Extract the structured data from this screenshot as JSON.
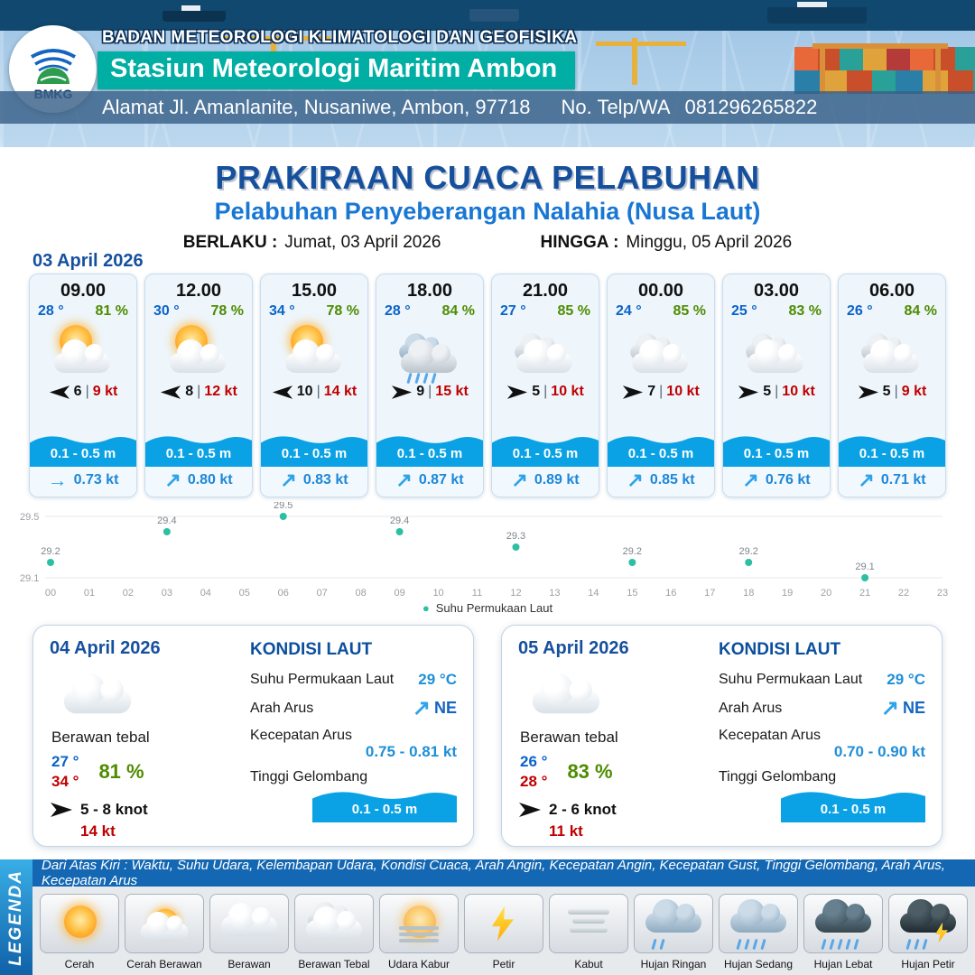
{
  "header": {
    "org": "BADAN METEOROLOGI KLIMATOLOGI DAN GEOFISIKA",
    "station": "Stasiun Meteorologi Maritim Ambon",
    "address": "Alamat Jl. Amanlanite, Nusaniwe, Ambon, 97718",
    "phone_label": "No. Telp/WA",
    "phone": "081296265822",
    "logo": "BMKG"
  },
  "title": {
    "main": "PRAKIRAAN CUACA PELABUHAN",
    "sub": "Pelabuhan Penyeberangan Nalahia (Nusa Laut)",
    "berlaku_label": "BERLAKU :",
    "berlaku": "Jumat, 03 April 2026",
    "hingga_label": "HINGGA :",
    "hingga": "Minggu, 05 April 2026"
  },
  "forecast_date": "03 April 2026",
  "ui": {
    "sep": "|",
    "arrow_ne": "↗",
    "arrow_e": "→",
    "legend_dot": "●"
  },
  "hourly": [
    {
      "time": "09.00",
      "temp": "28 °",
      "rh": "81 %",
      "weather": "Cerah Berawan",
      "wind": "6",
      "gust": "9 kt",
      "wave": "0.1 - 0.5 m",
      "current": "0.73 kt",
      "current_arrow": "→"
    },
    {
      "time": "12.00",
      "temp": "30 °",
      "rh": "78 %",
      "weather": "Cerah Berawan",
      "wind": "8",
      "gust": "12 kt",
      "wave": "0.1 - 0.5 m",
      "current": "0.80 kt",
      "current_arrow": "↗"
    },
    {
      "time": "15.00",
      "temp": "34 °",
      "rh": "78 %",
      "weather": "Cerah Berawan",
      "wind": "10",
      "gust": "14 kt",
      "wave": "0.1 - 0.5 m",
      "current": "0.83 kt",
      "current_arrow": "↗"
    },
    {
      "time": "18.00",
      "temp": "28 °",
      "rh": "84 %",
      "weather": "Hujan Sedang",
      "wind": "9",
      "gust": "15 kt",
      "wave": "0.1 - 0.5 m",
      "current": "0.87 kt",
      "current_arrow": "↗"
    },
    {
      "time": "21.00",
      "temp": "27 °",
      "rh": "85 %",
      "weather": "Berawan",
      "wind": "5",
      "gust": "10 kt",
      "wave": "0.1 - 0.5 m",
      "current": "0.89 kt",
      "current_arrow": "↗"
    },
    {
      "time": "00.00",
      "temp": "24 °",
      "rh": "85 %",
      "weather": "Berawan",
      "wind": "7",
      "gust": "10 kt",
      "wave": "0.1 - 0.5 m",
      "current": "0.85 kt",
      "current_arrow": "↗"
    },
    {
      "time": "03.00",
      "temp": "25 °",
      "rh": "83 %",
      "weather": "Berawan",
      "wind": "5",
      "gust": "10 kt",
      "wave": "0.1 - 0.5 m",
      "current": "0.76 kt",
      "current_arrow": "↗"
    },
    {
      "time": "06.00",
      "temp": "26 °",
      "rh": "84 %",
      "weather": "Berawan",
      "wind": "5",
      "gust": "9 kt",
      "wave": "0.1 - 0.5 m",
      "current": "0.71 kt",
      "current_arrow": "↗"
    }
  ],
  "chart_data": {
    "type": "scatter",
    "series": [
      {
        "name": "Suhu Permukaan Laut",
        "x": [
          0,
          3,
          6,
          9,
          12,
          15,
          18,
          21
        ],
        "values": [
          29.2,
          29.4,
          29.5,
          29.4,
          29.3,
          29.2,
          29.2,
          29.1
        ]
      }
    ],
    "x_ticks": [
      "00",
      "01",
      "02",
      "03",
      "04",
      "05",
      "06",
      "07",
      "08",
      "09",
      "10",
      "11",
      "12",
      "13",
      "14",
      "15",
      "16",
      "17",
      "18",
      "19",
      "20",
      "21",
      "22",
      "23"
    ],
    "ylim": [
      29.1,
      29.5
    ],
    "y_ticks": [
      "29.5",
      "29.1"
    ],
    "legend": "Suhu Permukaan Laut",
    "legend_position": "bottom-center",
    "grid": "faint-horizontal",
    "point_color": "#2bbfa4"
  },
  "daily_labels": {
    "kondisi_laut": "KONDISI LAUT",
    "sst": "Suhu Permukaan Laut",
    "arah_arus": "Arah Arus",
    "kecepatan_arus": "Kecepatan Arus",
    "tinggi_gelombang": "Tinggi Gelombang"
  },
  "daily": [
    {
      "date": "04 April 2026",
      "weather": "Berawan tebal",
      "temp_min": "27 °",
      "temp_max": "34 °",
      "rh": "81 %",
      "wind": "5  - 8 knot",
      "gust": "14 kt",
      "sst": "29 °C",
      "current_dir": "NE",
      "current_speed": "0.75 - 0.81 kt",
      "wave": "0.1 - 0.5 m"
    },
    {
      "date": "05 April 2026",
      "weather": "Berawan tebal",
      "temp_min": "26 °",
      "temp_max": "28 °",
      "rh": "83 %",
      "wind": "2  - 6 knot",
      "gust": "11 kt",
      "sst": "29 °C",
      "current_dir": "NE",
      "current_speed": "0.70 - 0.90 kt",
      "wave": "0.1 - 0.5 m"
    }
  ],
  "legend": {
    "title": "LEGENDA",
    "description": "Dari Atas Kiri : Waktu, Suhu Udara, Kelembapan Udara, Kondisi Cuaca, Arah Angin, Kecepatan Angin, Kecepatan Gust, Tinggi Gelombang, Arah Arus, Kecepatan Arus",
    "items": [
      {
        "label": "Cerah"
      },
      {
        "label": "Cerah Berawan"
      },
      {
        "label": "Berawan"
      },
      {
        "label": "Berawan Tebal"
      },
      {
        "label": "Udara Kabur"
      },
      {
        "label": "Petir"
      },
      {
        "label": "Kabut"
      },
      {
        "label": "Hujan Ringan"
      },
      {
        "label": "Hujan Sedang"
      },
      {
        "label": "Hujan Lebat"
      },
      {
        "label": "Hujan Petir"
      }
    ]
  }
}
